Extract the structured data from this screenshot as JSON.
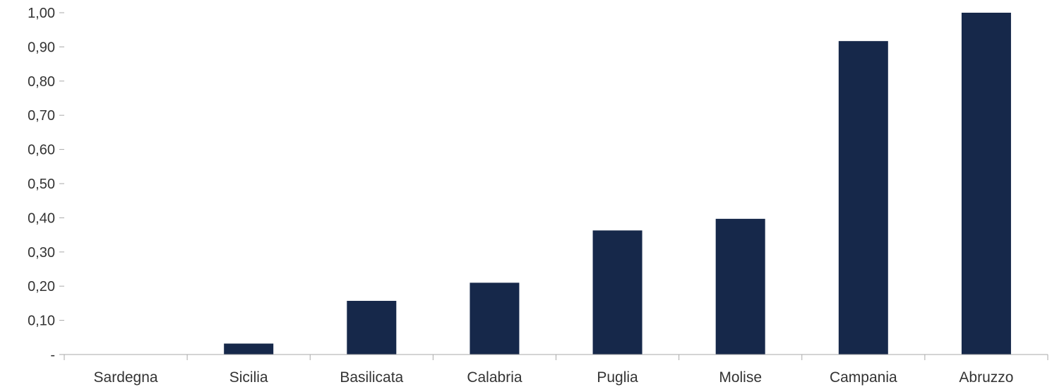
{
  "chart_data": {
    "type": "bar",
    "categories": [
      "Sardegna",
      "Sicilia",
      "Basilicata",
      "Calabria",
      "Puglia",
      "Molise",
      "Campania",
      "Abruzzo"
    ],
    "values": [
      0.0,
      0.032,
      0.157,
      0.21,
      0.363,
      0.397,
      0.917,
      1.0
    ],
    "ylim": [
      0,
      1
    ],
    "yticks": [
      "-",
      "0,10",
      "0,20",
      "0,30",
      "0,40",
      "0,50",
      "0,60",
      "0,70",
      "0,80",
      "0,90",
      "1,00"
    ],
    "grid": false,
    "bar_color": "#16284a",
    "axis_color": "#aaaaaa"
  }
}
